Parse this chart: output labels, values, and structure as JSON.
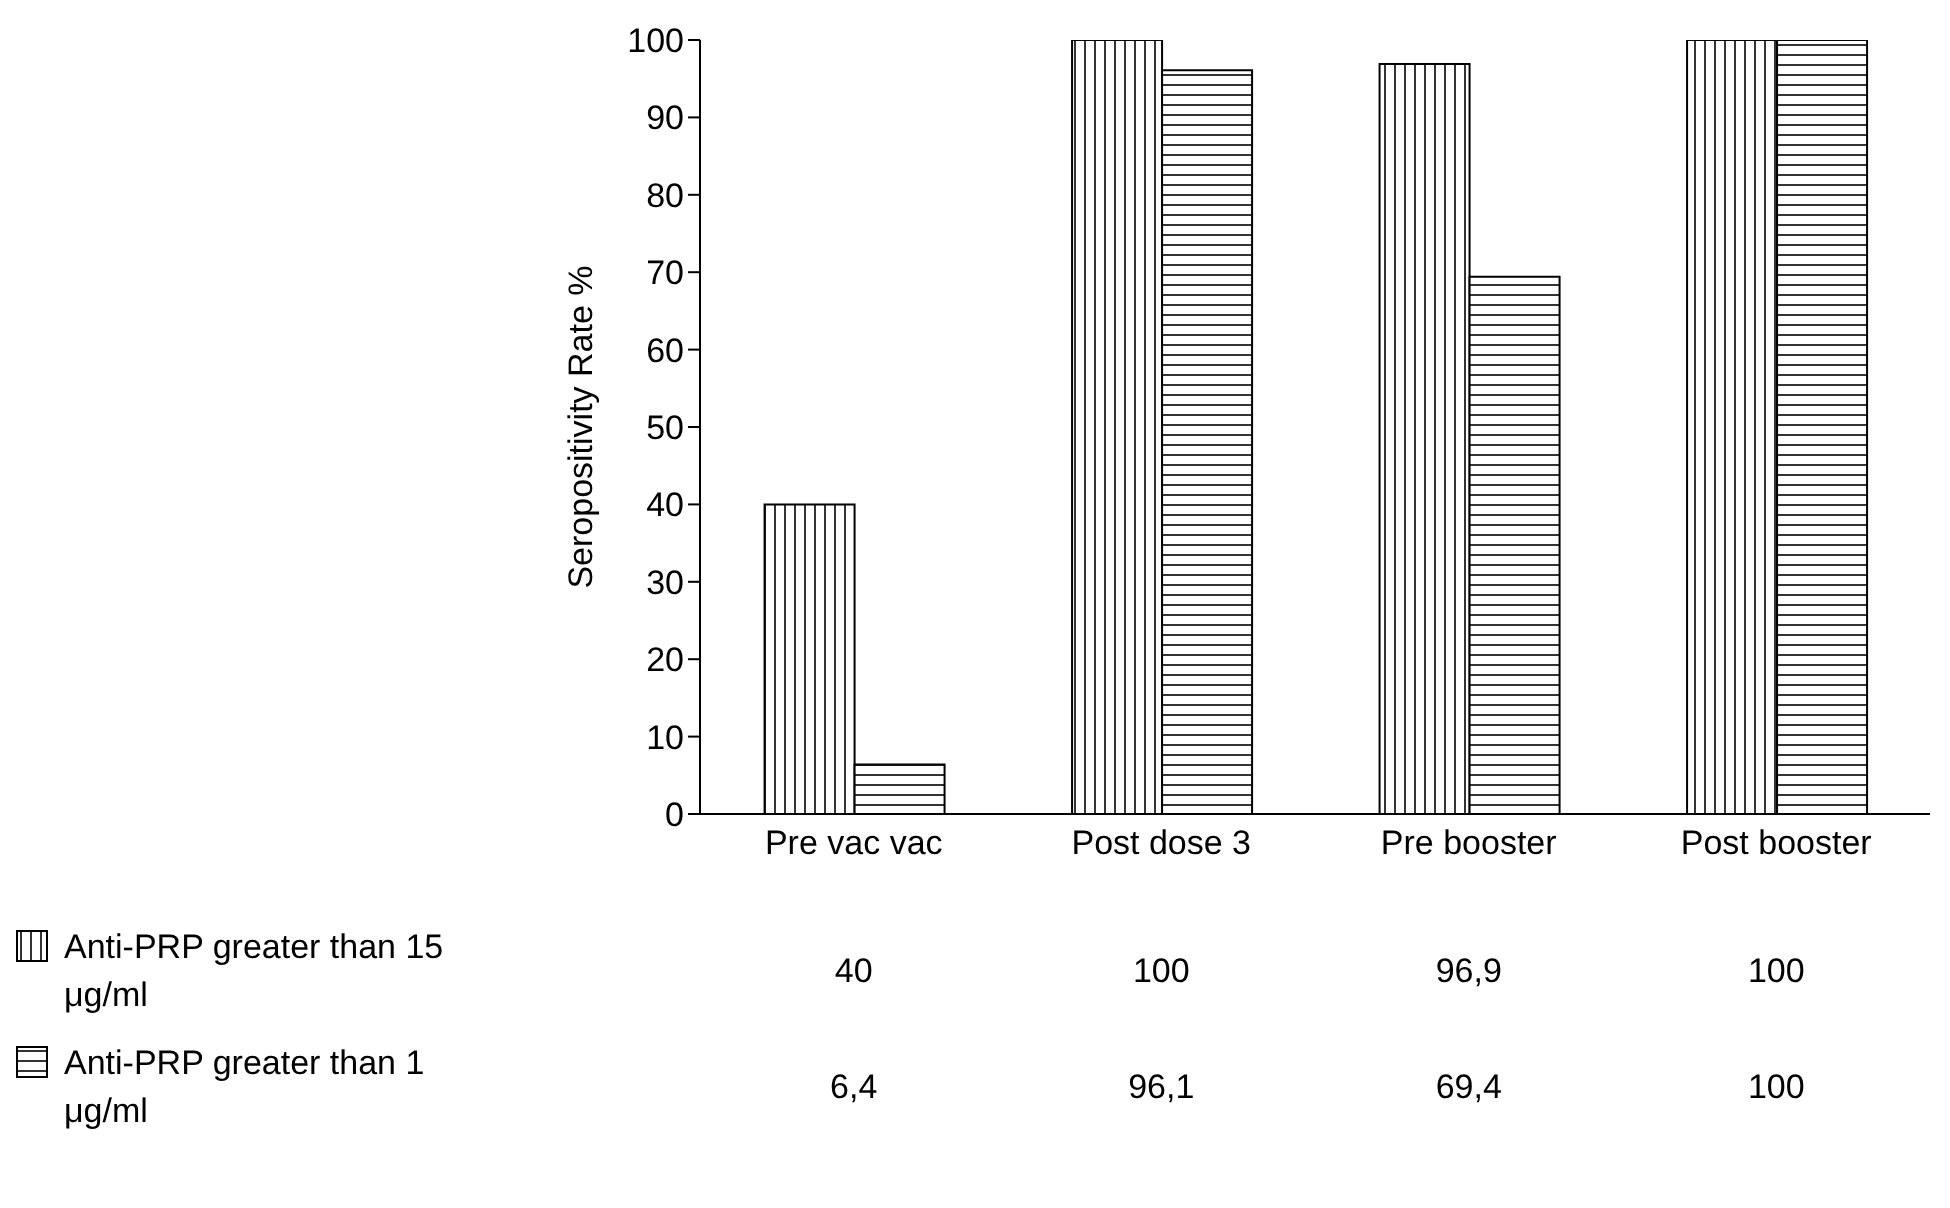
{
  "chart_data": {
    "type": "bar",
    "ylabel": "Seropositivity Rate %",
    "categories": [
      "Pre vac  vac",
      "Post dose 3",
      "Pre booster",
      "Post booster"
    ],
    "series": [
      {
        "name": "Anti-PRP greater than 15 μg/ml",
        "color": "#000000",
        "values": [
          40,
          100,
          96.9,
          100
        ],
        "value_labels": [
          "40",
          "100",
          "96,9",
          "100"
        ]
      },
      {
        "name": "Anti-PRP greater than 1 μg/ml",
        "color": "#000000",
        "values": [
          6.4,
          96.1,
          69.4,
          100
        ],
        "value_labels": [
          "6,4",
          "96,1",
          "69,4",
          "100"
        ]
      }
    ],
    "ylim": [
      0,
      100
    ],
    "yticks": [
      0,
      10,
      20,
      30,
      40,
      50,
      60,
      70,
      80,
      90,
      100
    ],
    "grid": false,
    "legend": "bottom left"
  }
}
